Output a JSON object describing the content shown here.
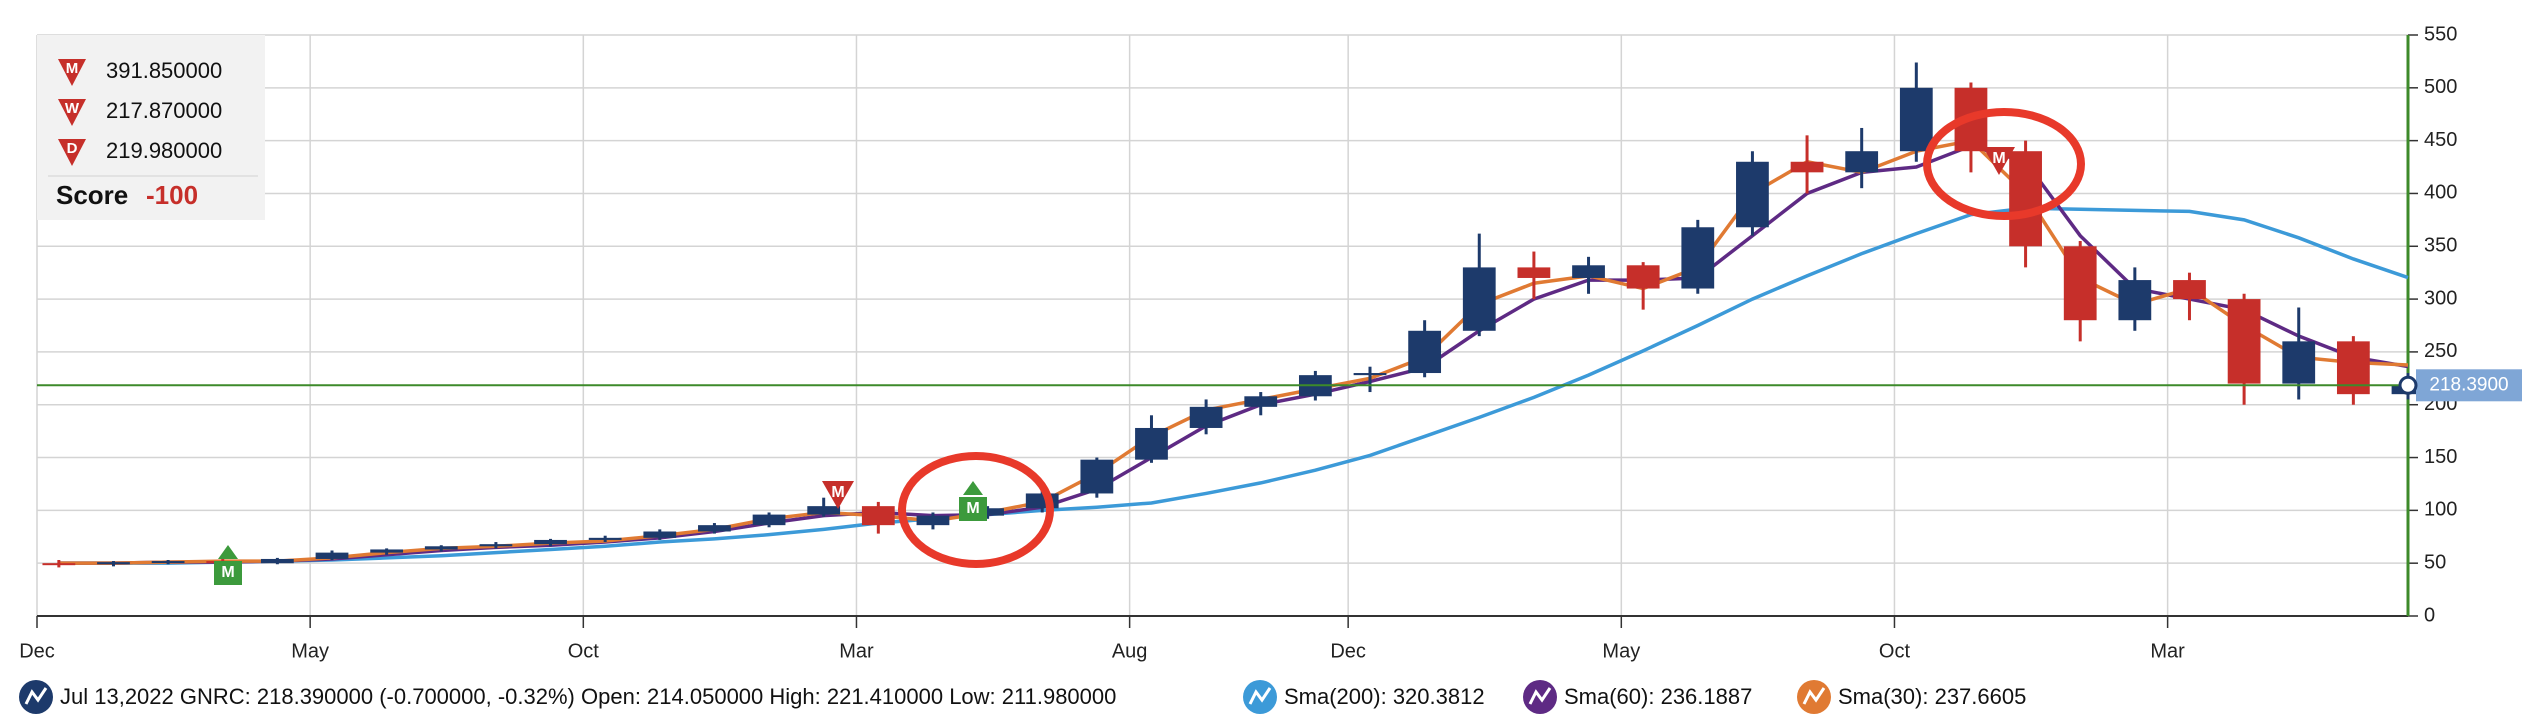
{
  "chart_data": {
    "type": "candlestick",
    "categories": [
      "Dec",
      null,
      null,
      null,
      null,
      "May",
      null,
      null,
      null,
      null,
      "Oct",
      null,
      null,
      null,
      null,
      "Mar",
      null,
      null,
      null,
      null,
      "Aug",
      null,
      null,
      null,
      "Dec",
      null,
      null,
      null,
      null,
      "May",
      null,
      null,
      null,
      null,
      "Oct",
      null,
      null,
      null,
      null,
      "Mar",
      null,
      null,
      null,
      null
    ],
    "open": [
      50,
      49,
      51,
      52,
      50,
      54,
      60,
      63,
      66,
      68,
      72,
      74,
      80,
      86,
      96,
      104,
      86,
      95,
      102,
      116,
      148,
      178,
      198,
      208,
      228,
      230,
      270,
      330,
      320,
      332,
      310,
      368,
      430,
      420,
      440,
      500,
      440,
      350,
      280,
      318,
      300,
      220,
      260,
      210
    ],
    "high": [
      53,
      52,
      53,
      54,
      55,
      62,
      64,
      67,
      70,
      73,
      76,
      82,
      88,
      98,
      112,
      108,
      98,
      104,
      120,
      150,
      190,
      205,
      212,
      232,
      236,
      280,
      362,
      345,
      340,
      335,
      375,
      440,
      455,
      462,
      524,
      505,
      450,
      355,
      330,
      325,
      305,
      292,
      265,
      230
    ],
    "low": [
      46,
      47,
      49,
      49,
      49,
      53,
      58,
      61,
      64,
      66,
      70,
      72,
      78,
      84,
      94,
      78,
      82,
      92,
      98,
      112,
      145,
      172,
      190,
      204,
      212,
      226,
      265,
      300,
      305,
      290,
      305,
      360,
      400,
      405,
      430,
      420,
      330,
      260,
      270,
      280,
      200,
      205,
      200,
      205
    ],
    "close": [
      49,
      51,
      52,
      50,
      54,
      60,
      63,
      66,
      68,
      72,
      74,
      80,
      86,
      96,
      104,
      86,
      95,
      102,
      116,
      148,
      178,
      198,
      208,
      228,
      230,
      270,
      330,
      320,
      332,
      310,
      368,
      430,
      420,
      440,
      500,
      440,
      350,
      280,
      318,
      300,
      220,
      260,
      210,
      218.39
    ],
    "up_color": "#1d3a6b",
    "down_color": "#c62f2a",
    "series": [
      {
        "name": "Sma(200): 320.3812",
        "color": "#3c9ad8",
        "values": [
          50,
          50,
          50,
          51,
          52,
          53,
          55,
          57,
          60,
          63,
          66,
          70,
          73,
          77,
          82,
          88,
          92,
          96,
          100,
          103,
          107,
          116,
          126,
          138,
          152,
          170,
          188,
          207,
          228,
          251,
          275,
          300,
          322,
          343,
          362,
          380,
          386,
          385,
          384,
          383,
          375,
          358,
          338,
          320.3812
        ]
      },
      {
        "name": "Sma(60): 236.1887",
        "color": "#5e2a84",
        "values": [
          50,
          50,
          51,
          51,
          52,
          54,
          58,
          62,
          65,
          67,
          70,
          74,
          80,
          88,
          95,
          98,
          95,
          96,
          103,
          120,
          150,
          180,
          200,
          210,
          222,
          235,
          270,
          300,
          318,
          318,
          320,
          360,
          400,
          420,
          425,
          445,
          430,
          360,
          310,
          300,
          290,
          265,
          245,
          236.1887
        ]
      },
      {
        "name": "Sma(30): 237.6605",
        "color": "#e07a33",
        "values": [
          50,
          50,
          51,
          52,
          52,
          55,
          60,
          64,
          66,
          69,
          71,
          76,
          82,
          92,
          98,
          95,
          90,
          98,
          108,
          135,
          170,
          195,
          205,
          215,
          225,
          245,
          295,
          315,
          322,
          310,
          330,
          400,
          430,
          420,
          440,
          450,
          400,
          320,
          295,
          310,
          275,
          245,
          240,
          237.6605
        ]
      }
    ],
    "price_line": {
      "value": 218.39,
      "label": "218.3900",
      "color": "#3d8a2a",
      "label_color": "#7fa6d6"
    },
    "ylim": [
      0,
      550
    ],
    "yticks": [
      0,
      50,
      100,
      150,
      200,
      250,
      300,
      350,
      400,
      450,
      500,
      550
    ],
    "grid": true,
    "info": "Jul 13,2022 GNRC: 218.390000 (-0.700000, -0.32%) Open: 214.050000 High: 221.410000 Low: 211.980000",
    "signals": [
      {
        "label": "M",
        "value": "391.850000"
      },
      {
        "label": "W",
        "value": "217.870000"
      },
      {
        "label": "D",
        "value": "219.980000"
      }
    ],
    "score": {
      "label": "Score",
      "value": "-100"
    },
    "markers": [
      {
        "label": "M",
        "color": "#3c9a3c"
      },
      {
        "label": "M",
        "color": "#c62f2a"
      },
      {
        "label": "M",
        "color": "#3c9a3c"
      },
      {
        "label": "M",
        "color": "#c62f2a"
      }
    ]
  }
}
